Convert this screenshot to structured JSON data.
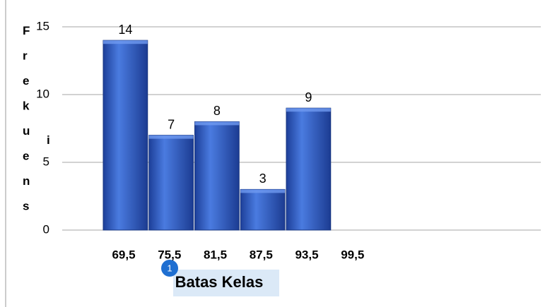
{
  "chart_data": {
    "type": "histogram",
    "x_label": "Batas Kelas",
    "y_label": "Frekuensi",
    "bins": [
      {
        "value": 69.5,
        "label": "69,5"
      },
      {
        "value": 75.5,
        "label": "75,5"
      },
      {
        "value": 81.5,
        "label": "81,5"
      },
      {
        "value": 87.5,
        "label": "87,5"
      },
      {
        "value": 93.5,
        "label": "93,5"
      },
      {
        "value": 99.5,
        "label": "99,5"
      }
    ],
    "values": [
      14,
      7,
      8,
      3,
      9
    ],
    "color": "#2f5fcc",
    "ylim": [
      0,
      15
    ],
    "yticks": [
      0,
      5,
      10,
      15
    ],
    "grid": true
  }
}
